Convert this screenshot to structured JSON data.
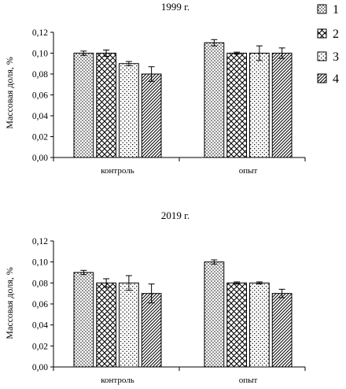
{
  "chart_data": [
    {
      "type": "bar",
      "title": "1999 г.",
      "xlabel": "",
      "ylabel": "Массовая доля, %",
      "ylim": [
        0,
        0.12
      ],
      "yticks": [
        "0,00",
        "0,02",
        "0,04",
        "0,06",
        "0,08",
        "0,10",
        "0,12"
      ],
      "categories": [
        "контроль",
        "опыт"
      ],
      "series": [
        {
          "name": "1",
          "values": [
            0.1,
            0.11
          ],
          "errors": [
            0.002,
            0.003
          ]
        },
        {
          "name": "2",
          "values": [
            0.1,
            0.1
          ],
          "errors": [
            0.003,
            0.001
          ]
        },
        {
          "name": "3",
          "values": [
            0.09,
            0.1
          ],
          "errors": [
            0.002,
            0.007
          ]
        },
        {
          "name": "4",
          "values": [
            0.08,
            0.1
          ],
          "errors": [
            0.007,
            0.005
          ]
        }
      ]
    },
    {
      "type": "bar",
      "title": "2019 г.",
      "xlabel": "",
      "ylabel": "Массовая доля, %",
      "ylim": [
        0,
        0.12
      ],
      "yticks": [
        "0,00",
        "0,02",
        "0,04",
        "0,06",
        "0,08",
        "0,10",
        "0,12"
      ],
      "categories": [
        "контроль",
        "опыт"
      ],
      "series": [
        {
          "name": "1",
          "values": [
            0.09,
            0.1
          ],
          "errors": [
            0.002,
            0.002
          ]
        },
        {
          "name": "2",
          "values": [
            0.08,
            0.08
          ],
          "errors": [
            0.004,
            0.001
          ]
        },
        {
          "name": "3",
          "values": [
            0.08,
            0.08
          ],
          "errors": [
            0.007,
            0.001
          ]
        },
        {
          "name": "4",
          "values": [
            0.07,
            0.07
          ],
          "errors": [
            0.009,
            0.004
          ]
        }
      ]
    }
  ],
  "legend": {
    "placement": "top-right",
    "items": [
      {
        "label": "1",
        "pattern": "dots"
      },
      {
        "label": "2",
        "pattern": "crosshatch"
      },
      {
        "label": "3",
        "pattern": "sparse-dots"
      },
      {
        "label": "4",
        "pattern": "diagonal"
      }
    ]
  }
}
